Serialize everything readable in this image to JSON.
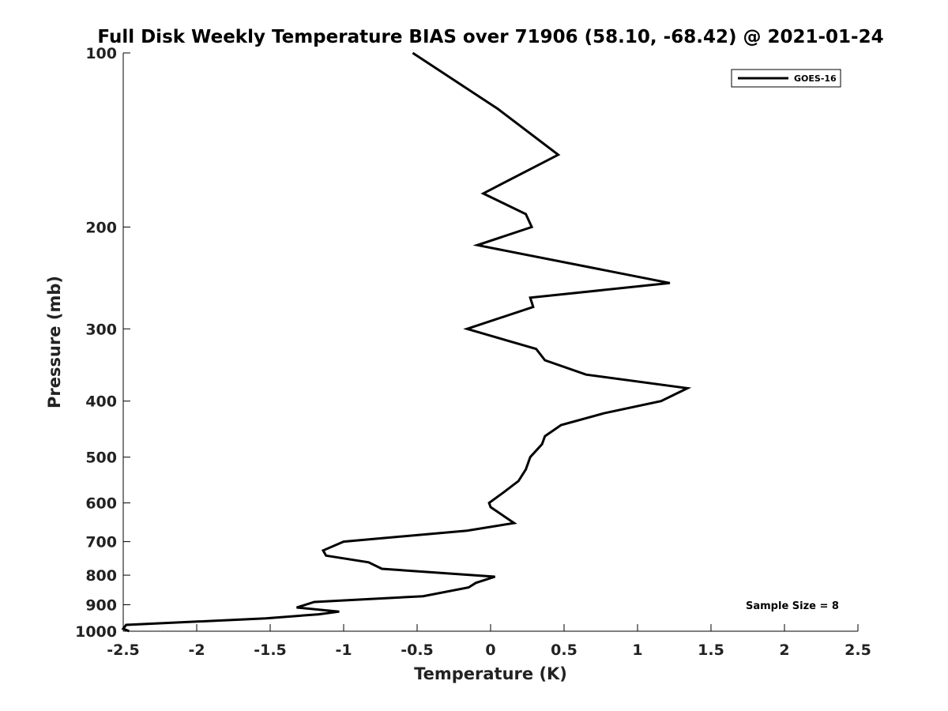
{
  "chart_data": {
    "type": "line",
    "title": "Full Disk Weekly Temperature BIAS over 71906 (58.10, -68.42) @ 2021-01-24",
    "xlabel": "Temperature (K)",
    "ylabel": "Pressure (mb)",
    "xlim": [
      -2.5,
      2.5
    ],
    "ylim": [
      1000,
      100
    ],
    "yscale": "log",
    "grid": false,
    "legend_position": "top-right",
    "xticks": [
      -2.5,
      -2,
      -1.5,
      -1,
      -0.5,
      0,
      0.5,
      1,
      1.5,
      2,
      2.5
    ],
    "xtick_labels": [
      "-2.5",
      "-2",
      "-1.5",
      "-1",
      "-0.5",
      "0",
      "0.5",
      "1",
      "1.5",
      "2",
      "2.5"
    ],
    "yticks": [
      100,
      200,
      300,
      400,
      500,
      600,
      700,
      800,
      900,
      1000
    ],
    "ytick_labels": [
      "100",
      "200",
      "300",
      "400",
      "500",
      "600",
      "700",
      "800",
      "900",
      "1000"
    ],
    "series": [
      {
        "name": "GOES-16",
        "color": "#000000",
        "points": [
          {
            "x": -0.53,
            "p": 100
          },
          {
            "x": 0.05,
            "p": 125
          },
          {
            "x": 0.46,
            "p": 150
          },
          {
            "x": -0.05,
            "p": 175
          },
          {
            "x": 0.24,
            "p": 190
          },
          {
            "x": 0.28,
            "p": 200
          },
          {
            "x": -0.09,
            "p": 215
          },
          {
            "x": 1.22,
            "p": 250
          },
          {
            "x": 0.27,
            "p": 265
          },
          {
            "x": 0.29,
            "p": 275
          },
          {
            "x": -0.16,
            "p": 300
          },
          {
            "x": 0.31,
            "p": 325
          },
          {
            "x": 0.37,
            "p": 340
          },
          {
            "x": 0.65,
            "p": 360
          },
          {
            "x": 1.34,
            "p": 380
          },
          {
            "x": 1.16,
            "p": 400
          },
          {
            "x": 0.77,
            "p": 420
          },
          {
            "x": 0.48,
            "p": 440
          },
          {
            "x": 0.37,
            "p": 460
          },
          {
            "x": 0.35,
            "p": 475
          },
          {
            "x": 0.27,
            "p": 500
          },
          {
            "x": 0.24,
            "p": 525
          },
          {
            "x": 0.19,
            "p": 550
          },
          {
            "x": 0.09,
            "p": 575
          },
          {
            "x": -0.01,
            "p": 600
          },
          {
            "x": 0.0,
            "p": 610
          },
          {
            "x": 0.16,
            "p": 650
          },
          {
            "x": -0.16,
            "p": 670
          },
          {
            "x": -1.0,
            "p": 700
          },
          {
            "x": -1.14,
            "p": 725
          },
          {
            "x": -1.12,
            "p": 740
          },
          {
            "x": -0.83,
            "p": 760
          },
          {
            "x": -0.74,
            "p": 780
          },
          {
            "x": 0.03,
            "p": 805
          },
          {
            "x": -0.1,
            "p": 825
          },
          {
            "x": -0.15,
            "p": 840
          },
          {
            "x": -0.46,
            "p": 870
          },
          {
            "x": -1.2,
            "p": 890
          },
          {
            "x": -1.32,
            "p": 910
          },
          {
            "x": -1.03,
            "p": 925
          },
          {
            "x": -1.17,
            "p": 935
          },
          {
            "x": -1.53,
            "p": 950
          },
          {
            "x": -2.48,
            "p": 975
          },
          {
            "x": -2.5,
            "p": 990
          },
          {
            "x": -2.46,
            "p": 1000
          }
        ]
      }
    ],
    "annotations": [
      {
        "text": "Sample Size = 8",
        "position": "bottom-right"
      }
    ]
  }
}
